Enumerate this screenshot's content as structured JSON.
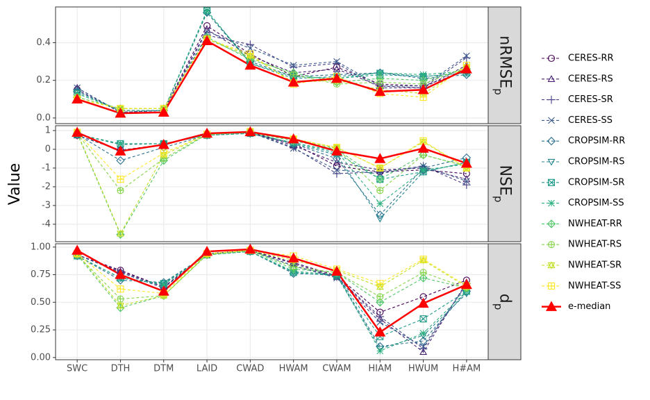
{
  "chart_data": {
    "type": "line",
    "y_label": "Value",
    "categories": [
      "SWC",
      "DTH",
      "DTM",
      "LAID",
      "CWAD",
      "HWAM",
      "CWAM",
      "HIAM",
      "HWUM",
      "H#AM"
    ],
    "grid": true,
    "series": [
      {
        "name": "CERES-RR",
        "color": "#440154",
        "marker": "circle",
        "line_style": "dashed"
      },
      {
        "name": "CERES-RS",
        "color": "#482173",
        "marker": "triangle",
        "line_style": "dashed"
      },
      {
        "name": "CERES-SR",
        "color": "#433e85",
        "marker": "plus",
        "line_style": "dashed"
      },
      {
        "name": "CERES-SS",
        "color": "#38598c",
        "marker": "cross",
        "line_style": "dashed"
      },
      {
        "name": "CROPSIM-RR",
        "color": "#2d708e",
        "marker": "diamond",
        "line_style": "dashed"
      },
      {
        "name": "CROPSIM-RS",
        "color": "#25858e",
        "marker": "triangle-down",
        "line_style": "dashed"
      },
      {
        "name": "CROPSIM-SR",
        "color": "#1e9b8a",
        "marker": "square-cross",
        "line_style": "dashed"
      },
      {
        "name": "CROPSIM-SS",
        "color": "#2bb07f",
        "marker": "asterisk",
        "line_style": "dashed"
      },
      {
        "name": "NWHEAT-RR",
        "color": "#51c56a",
        "marker": "diamond-plus",
        "line_style": "dashed"
      },
      {
        "name": "NWHEAT-RS",
        "color": "#85d54a",
        "marker": "circle-plus",
        "line_style": "dashed"
      },
      {
        "name": "NWHEAT-SR",
        "color": "#c2df23",
        "marker": "hourglass",
        "line_style": "dashed"
      },
      {
        "name": "NWHEAT-SS",
        "color": "#fde725",
        "marker": "square-plus",
        "line_style": "dashed"
      },
      {
        "name": "e-median",
        "color": "#ff0000",
        "marker": "filled-triangle",
        "line_style": "solid"
      }
    ],
    "facets": [
      {
        "label": "nRMSE",
        "subscript": "p",
        "ylim": [
          -0.03,
          0.59
        ],
        "yticks": [
          {
            "value": 0,
            "label": "0.0"
          },
          0.2,
          0.4
        ],
        "values": [
          [
            0.15,
            0.03,
            0.04,
            0.49,
            0.34,
            0.22,
            0.27,
            0.18,
            0.17,
            0.25
          ],
          [
            0.16,
            0.03,
            0.04,
            0.47,
            0.33,
            0.24,
            0.26,
            0.17,
            0.16,
            0.28
          ],
          [
            0.15,
            0.03,
            0.04,
            0.44,
            0.39,
            0.27,
            0.29,
            0.16,
            0.16,
            0.32
          ],
          [
            0.16,
            0.03,
            0.04,
            0.46,
            0.37,
            0.28,
            0.3,
            0.17,
            0.17,
            0.33
          ],
          [
            0.14,
            0.04,
            0.04,
            0.56,
            0.3,
            0.22,
            0.23,
            0.24,
            0.21,
            0.23
          ],
          [
            0.14,
            0.04,
            0.04,
            0.56,
            0.29,
            0.21,
            0.22,
            0.24,
            0.22,
            0.24
          ],
          [
            0.13,
            0.04,
            0.04,
            0.57,
            0.29,
            0.22,
            0.21,
            0.23,
            0.22,
            0.24
          ],
          [
            0.13,
            0.04,
            0.04,
            0.57,
            0.29,
            0.22,
            0.21,
            0.24,
            0.23,
            0.25
          ],
          [
            0.11,
            0.05,
            0.05,
            0.43,
            0.31,
            0.24,
            0.19,
            0.21,
            0.2,
            0.26
          ],
          [
            0.11,
            0.05,
            0.05,
            0.42,
            0.32,
            0.23,
            0.18,
            0.19,
            0.18,
            0.27
          ],
          [
            0.1,
            0.05,
            0.05,
            0.42,
            0.33,
            0.19,
            0.2,
            0.15,
            0.13,
            0.27
          ],
          [
            0.1,
            0.05,
            0.05,
            0.42,
            0.34,
            0.18,
            0.22,
            0.13,
            0.11,
            0.28
          ],
          [
            0.1,
            0.025,
            0.03,
            0.41,
            0.28,
            0.19,
            0.21,
            0.14,
            0.15,
            0.26
          ]
        ]
      },
      {
        "label": "NSE",
        "subscript": "p",
        "ylim": [
          -4.93,
          1.26
        ],
        "yticks": [
          -4,
          -3,
          -2,
          -1,
          0,
          1
        ],
        "values": [
          [
            0.75,
            -0.05,
            0.25,
            0.8,
            0.9,
            0.3,
            -0.9,
            -1.2,
            -1.1,
            -1.3
          ],
          [
            0.75,
            -0.05,
            0.25,
            0.8,
            0.9,
            0.2,
            -0.7,
            -1.1,
            -1.0,
            -1.6
          ],
          [
            0.75,
            -0.05,
            0.25,
            0.8,
            0.9,
            0.1,
            -1.3,
            -1.2,
            -0.9,
            -1.9
          ],
          [
            0.75,
            -0.05,
            0.25,
            0.8,
            0.9,
            0.05,
            -1.1,
            -1.3,
            -0.9,
            -1.7
          ],
          [
            0.8,
            -0.6,
            0.1,
            0.75,
            0.85,
            0.3,
            -0.5,
            -3.5,
            -1.0,
            -0.45
          ],
          [
            0.8,
            0.25,
            0.3,
            0.75,
            0.85,
            0.3,
            -0.3,
            -3.7,
            -1.2,
            -0.7
          ],
          [
            0.8,
            0.3,
            0.3,
            0.75,
            0.85,
            0.35,
            -0.2,
            -1.6,
            -1.2,
            -0.7
          ],
          [
            0.8,
            0.3,
            0.3,
            0.75,
            0.85,
            0.35,
            -0.1,
            -2.9,
            -1.1,
            -0.8
          ],
          [
            0.85,
            -4.55,
            -0.6,
            0.8,
            0.9,
            0.45,
            0,
            -1.6,
            -0.3,
            -0.9
          ],
          [
            0.85,
            -2.2,
            -0.5,
            0.8,
            0.9,
            0.5,
            0.05,
            -2.2,
            -0.3,
            -0.9
          ],
          [
            0.9,
            -4.5,
            -0.3,
            0.8,
            0.95,
            0.55,
            0.1,
            -1.0,
            0.4,
            -1.0
          ],
          [
            0.9,
            -1.6,
            -0.2,
            0.8,
            0.95,
            0.55,
            0.1,
            -1.0,
            0.45,
            -1.0
          ],
          [
            0.9,
            -0.1,
            0.25,
            0.85,
            0.93,
            0.55,
            -0.1,
            -0.5,
            0.05,
            -0.75
          ]
        ]
      },
      {
        "label": "d",
        "subscript": "p",
        "ylim": [
          -0.02,
          1.03
        ],
        "yticks": [
          {
            "value": 0,
            "label": "0.00"
          },
          {
            "value": 0.25,
            "label": "0.25"
          },
          {
            "value": 0.5,
            "label": "0.50"
          },
          {
            "value": 0.75,
            "label": "0.75"
          },
          {
            "value": 1,
            "label": "1.00"
          }
        ],
        "values": [
          [
            0.93,
            0.79,
            0.64,
            0.94,
            0.97,
            0.86,
            0.74,
            0.41,
            0.55,
            0.7
          ],
          [
            0.93,
            0.78,
            0.64,
            0.94,
            0.97,
            0.85,
            0.73,
            0.35,
            0.05,
            0.68
          ],
          [
            0.93,
            0.77,
            0.63,
            0.94,
            0.97,
            0.83,
            0.73,
            0.37,
            0.08,
            0.67
          ],
          [
            0.93,
            0.77,
            0.63,
            0.94,
            0.97,
            0.83,
            0.72,
            0.32,
            0.1,
            0.66
          ],
          [
            0.92,
            0.7,
            0.68,
            0.93,
            0.96,
            0.76,
            0.75,
            0.1,
            0.15,
            0.6
          ],
          [
            0.92,
            0.72,
            0.67,
            0.93,
            0.96,
            0.77,
            0.74,
            0.08,
            0.2,
            0.58
          ],
          [
            0.92,
            0.72,
            0.67,
            0.93,
            0.96,
            0.77,
            0.74,
            0.19,
            0.35,
            0.6
          ],
          [
            0.92,
            0.72,
            0.66,
            0.93,
            0.96,
            0.78,
            0.75,
            0.06,
            0.22,
            0.6
          ],
          [
            0.93,
            0.45,
            0.56,
            0.93,
            0.97,
            0.8,
            0.77,
            0.5,
            0.72,
            0.63
          ],
          [
            0.93,
            0.53,
            0.56,
            0.93,
            0.97,
            0.82,
            0.77,
            0.55,
            0.77,
            0.63
          ],
          [
            0.94,
            0.47,
            0.56,
            0.94,
            0.97,
            0.88,
            0.79,
            0.64,
            0.88,
            0.64
          ],
          [
            0.94,
            0.62,
            0.58,
            0.94,
            0.97,
            0.92,
            0.8,
            0.67,
            0.89,
            0.65
          ],
          [
            0.97,
            0.75,
            0.6,
            0.96,
            0.98,
            0.9,
            0.78,
            0.23,
            0.49,
            0.66
          ]
        ]
      }
    ]
  }
}
